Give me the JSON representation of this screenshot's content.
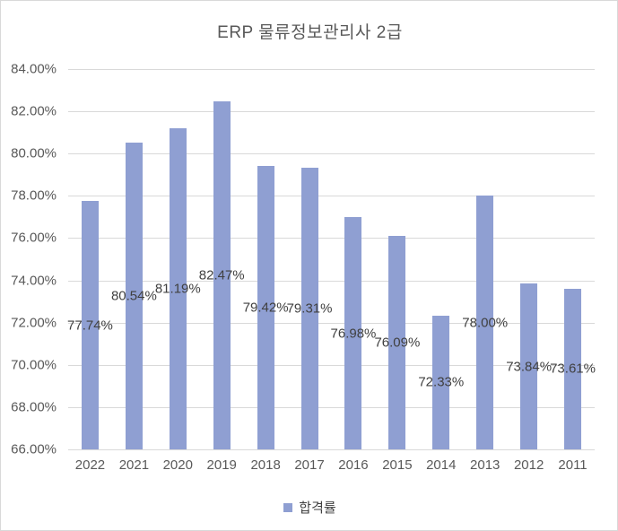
{
  "chart_data": {
    "type": "bar",
    "title": "ERP 물류정보관리사 2급",
    "categories": [
      "2022",
      "2021",
      "2020",
      "2019",
      "2018",
      "2017",
      "2016",
      "2015",
      "2014",
      "2013",
      "2012",
      "2011"
    ],
    "values": [
      77.74,
      80.54,
      81.19,
      82.47,
      79.42,
      79.31,
      76.98,
      76.09,
      72.33,
      78.0,
      73.84,
      73.61
    ],
    "value_labels": [
      "77.74%",
      "80.54%",
      "81.19%",
      "82.47%",
      "79.42%",
      "79.31%",
      "76.98%",
      "76.09%",
      "72.33%",
      "78.00%",
      "73.84%",
      "73.61%"
    ],
    "series_name": "합격률",
    "xlabel": "",
    "ylabel": "",
    "ylim": [
      66,
      84
    ],
    "y_step": 2,
    "y_ticks": [
      "84.00%",
      "82.00%",
      "80.00%",
      "78.00%",
      "76.00%",
      "74.00%",
      "72.00%",
      "70.00%",
      "68.00%",
      "66.00%"
    ],
    "grid": true,
    "legend_position": "bottom",
    "data_label_position": "center"
  },
  "legend": {
    "label": "합격률"
  },
  "colors": {
    "bar": "#8F9FD2",
    "gridline": "#D9D9D9",
    "axis_text": "#595959",
    "title_text": "#595959",
    "data_label_text": "#404040",
    "frame_border": "#D9D9D9",
    "background": "#FFFFFF"
  }
}
